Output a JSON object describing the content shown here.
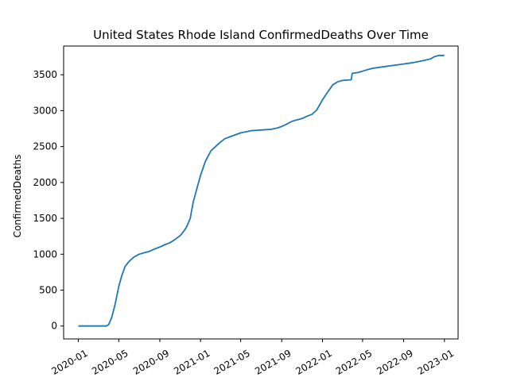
{
  "chart_data": {
    "type": "line",
    "title": "United States Rhode Island ConfirmedDeaths Over Time",
    "xlabel": "",
    "ylabel": "ConfirmedDeaths",
    "xlim": [
      "2019-11-18",
      "2023-02-11"
    ],
    "ylim": [
      -180,
      3900
    ],
    "grid": false,
    "legend": "none",
    "line_color": "#1f77b4",
    "x_ticks": [
      "2020-01-01",
      "2020-05-01",
      "2020-09-01",
      "2021-01-01",
      "2021-05-01",
      "2021-09-01",
      "2022-01-01",
      "2022-05-01",
      "2022-09-01",
      "2023-01-01"
    ],
    "x_tick_labels": [
      "2020-01",
      "2020-05",
      "2020-09",
      "2021-01",
      "2021-05",
      "2021-09",
      "2022-01",
      "2022-05",
      "2022-09",
      "2023-01"
    ],
    "y_ticks": [
      0,
      500,
      1000,
      1500,
      2000,
      2500,
      3000,
      3500
    ],
    "y_tick_labels": [
      "0",
      "500",
      "1000",
      "1500",
      "2000",
      "2500",
      "3000",
      "3500"
    ],
    "series": [
      {
        "x": [
          "2020-01-01",
          "2020-02-15",
          "2020-03-15",
          "2020-03-25",
          "2020-04-01",
          "2020-04-10",
          "2020-04-20",
          "2020-05-01",
          "2020-05-10",
          "2020-05-20",
          "2020-06-01",
          "2020-06-15",
          "2020-07-01",
          "2020-07-15",
          "2020-08-01",
          "2020-08-15",
          "2020-09-01",
          "2020-09-15",
          "2020-10-01",
          "2020-10-15",
          "2020-11-01",
          "2020-11-10",
          "2020-11-20",
          "2020-12-01",
          "2020-12-10",
          "2020-12-20",
          "2021-01-01",
          "2021-01-15",
          "2021-02-01",
          "2021-02-15",
          "2021-03-01",
          "2021-03-15",
          "2021-04-01",
          "2021-05-01",
          "2021-06-01",
          "2021-07-01",
          "2021-08-01",
          "2021-08-20",
          "2021-09-01",
          "2021-09-15",
          "2021-10-01",
          "2021-10-15",
          "2021-11-01",
          "2021-11-15",
          "2021-12-01",
          "2021-12-15",
          "2022-01-01",
          "2022-01-15",
          "2022-02-01",
          "2022-02-15",
          "2022-03-01",
          "2022-03-28",
          "2022-03-31",
          "2022-04-15",
          "2022-05-01",
          "2022-05-15",
          "2022-06-01",
          "2022-07-01",
          "2022-08-01",
          "2022-09-01",
          "2022-10-01",
          "2022-11-01",
          "2022-11-20",
          "2022-12-01",
          "2022-12-15",
          "2023-01-01"
        ],
        "y": [
          0,
          0,
          0,
          0,
          20,
          120,
          300,
          550,
          700,
          830,
          900,
          960,
          1000,
          1020,
          1040,
          1070,
          1100,
          1130,
          1160,
          1200,
          1260,
          1310,
          1380,
          1500,
          1730,
          1900,
          2100,
          2290,
          2440,
          2500,
          2560,
          2610,
          2640,
          2690,
          2720,
          2730,
          2740,
          2760,
          2780,
          2810,
          2850,
          2870,
          2890,
          2920,
          2950,
          3010,
          3150,
          3250,
          3360,
          3400,
          3420,
          3430,
          3520,
          3530,
          3550,
          3570,
          3590,
          3610,
          3630,
          3650,
          3670,
          3700,
          3720,
          3750,
          3770,
          3770
        ]
      }
    ]
  }
}
